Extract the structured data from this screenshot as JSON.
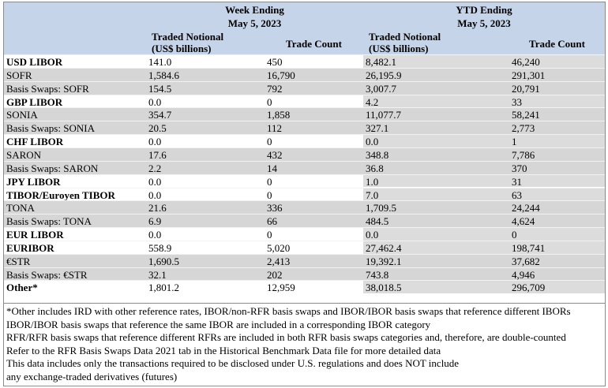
{
  "header": {
    "groups": [
      [
        "Week Ending",
        "May 5, 2023"
      ],
      [
        "YTD Ending",
        "May 5, 2023"
      ]
    ],
    "columns": [
      [
        "Traded Notional",
        "(US$ billions)"
      ],
      [
        "Trade Count"
      ],
      [
        "Traded Notional",
        "(US$ billions)"
      ],
      [
        "Trade Count"
      ]
    ]
  },
  "table": {
    "rows": [
      {
        "label": "USD LIBOR",
        "bold": true,
        "values": [
          "141.0",
          "450",
          "8,482.1",
          "46,240"
        ]
      },
      {
        "label": "SOFR",
        "bold": false,
        "values": [
          "1,584.6",
          "16,790",
          "26,195.9",
          "291,301"
        ]
      },
      {
        "label": "Basis Swaps: SOFR",
        "bold": false,
        "values": [
          "154.5",
          "792",
          "3,007.7",
          "20,791"
        ]
      },
      {
        "label": "GBP LIBOR",
        "bold": true,
        "values": [
          "0.0",
          "0",
          "4.2",
          "33"
        ]
      },
      {
        "label": "SONIA",
        "bold": false,
        "values": [
          "354.7",
          "1,858",
          "11,077.7",
          "58,241"
        ]
      },
      {
        "label": "Basis Swaps: SONIA",
        "bold": false,
        "values": [
          "20.5",
          "112",
          "327.1",
          "2,773"
        ]
      },
      {
        "label": "CHF LIBOR",
        "bold": true,
        "values": [
          "0.0",
          "0",
          "0.0",
          "1"
        ]
      },
      {
        "label": "SARON",
        "bold": false,
        "values": [
          "17.6",
          "432",
          "348.8",
          "7,786"
        ]
      },
      {
        "label": "Basis Swaps: SARON",
        "bold": false,
        "values": [
          "2.2",
          "14",
          "36.8",
          "370"
        ]
      },
      {
        "label": "JPY LIBOR",
        "bold": true,
        "values": [
          "0.0",
          "0",
          "1.0",
          "31"
        ]
      },
      {
        "label": "TIBOR/Euroyen TIBOR",
        "bold": true,
        "values": [
          "0.0",
          "0",
          "7.0",
          "63"
        ]
      },
      {
        "label": "TONA",
        "bold": false,
        "values": [
          "21.6",
          "336",
          "1,709.5",
          "24,244"
        ]
      },
      {
        "label": "Basis Swaps: TONA",
        "bold": false,
        "values": [
          "6.9",
          "66",
          "484.5",
          "4,624"
        ]
      },
      {
        "label": "EUR LIBOR",
        "bold": true,
        "values": [
          "0.0",
          "0",
          "0.0",
          "0"
        ]
      },
      {
        "label": "EURIBOR",
        "bold": true,
        "values": [
          "558.9",
          "5,020",
          "27,462.4",
          "198,741"
        ]
      },
      {
        "label": "€STR",
        "bold": false,
        "values": [
          "1,690.5",
          "2,413",
          "19,392.1",
          "37,682"
        ]
      },
      {
        "label": "Basis Swaps: €STR",
        "bold": false,
        "values": [
          "32.1",
          "202",
          "743.8",
          "4,946"
        ]
      },
      {
        "label": "Other*",
        "bold": true,
        "values": [
          "1,801.2",
          "12,959",
          "38,018.5",
          "296,709"
        ]
      }
    ]
  },
  "notes": [
    "*Other includes IRD with other reference rates, IBOR/non-RFR basis swaps and IBOR/IBOR basis swaps that reference different IBORs",
    "IBOR/IBOR basis swaps that reference the same IBOR are included in a corresponding IBOR category",
    "RFR/RFR basis swaps that reference different RFRs are included in both RFR basis swaps categories and, therefore, are double-counted",
    "Refer to the RFR Basis Swaps Data 2021 tab in the Historical Benchmark Data file for more detailed data",
    "This data includes only the transactions required to be disclosed under U.S. regulations and does NOT include",
    "any exchange-traded derivatives (futures)"
  ]
}
